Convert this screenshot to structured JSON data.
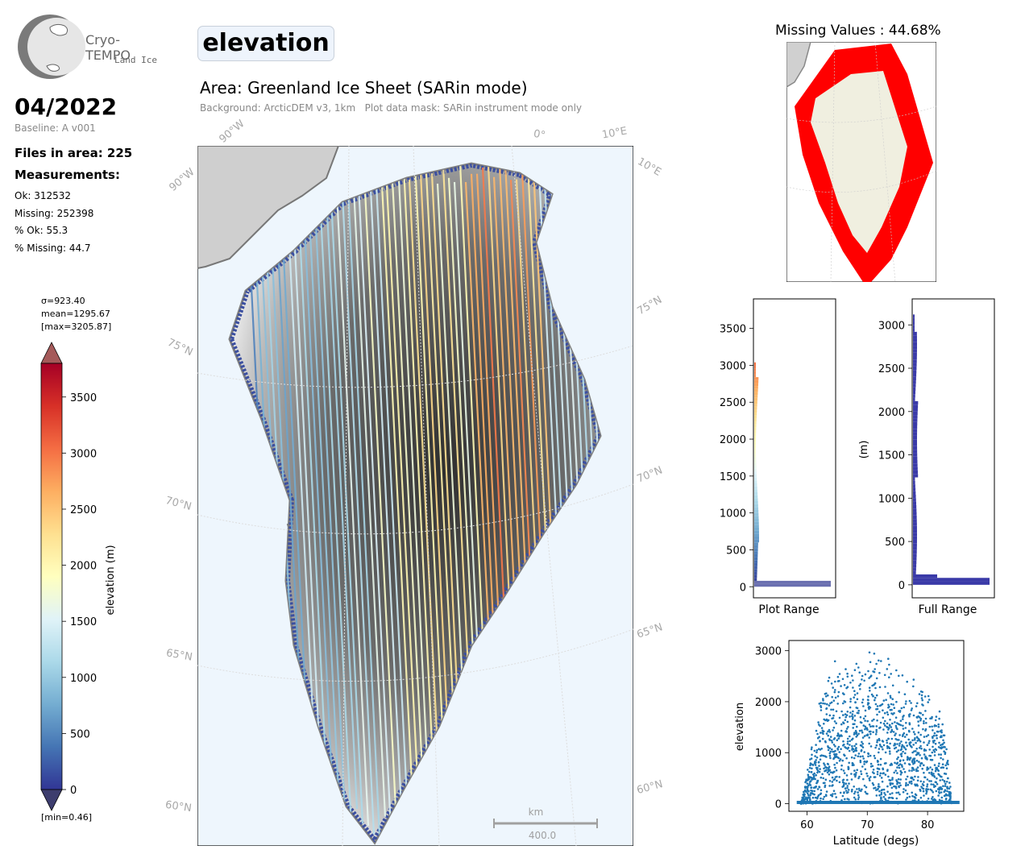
{
  "logo": {
    "name": "Cryo-TEMPO",
    "subtitle": "Land Ice"
  },
  "period": "04/2022",
  "baseline": "Baseline: A v001",
  "files": "Files in area: 225",
  "measurements": {
    "heading": "Measurements:",
    "ok": "Ok: 312532",
    "missing": "Missing: 252398",
    "pct_ok": "% Ok: 55.3",
    "pct_missing": "% Missing: 44.7"
  },
  "param_badge": "elevation",
  "area_title": "Area: Greenland Ice Sheet (SARin mode)",
  "area_subtitle": "Background: ArcticDEM v3, 1km   Plot data mask: SARin instrument mode only",
  "map_labels": {
    "top_90w": "90°W",
    "top_0": "0°",
    "top_10e": "10°E",
    "left_90w": "90°W",
    "right_10e": "10°E",
    "left_75n": "75°N",
    "left_70n": "70°N",
    "left_65n": "65°N",
    "left_60n": "60°N",
    "right_75n": "75°N",
    "right_70n": "70°N",
    "right_65n": "65°N",
    "right_60n": "60°N",
    "scale_unit": "km",
    "scale_value": "400.0"
  },
  "colorbar": {
    "stats": [
      "σ=923.40",
      "mean=1295.67",
      "[max=3205.87]"
    ],
    "min_label": "[min=0.46]",
    "label": "elevation (m)",
    "ticks": [
      "0",
      "500",
      "1000",
      "1500",
      "2000",
      "2500",
      "3000",
      "3500"
    ],
    "colors": [
      "#313695",
      "#4575b4",
      "#74add1",
      "#abd9e9",
      "#e0f3f8",
      "#ffffbf",
      "#fee090",
      "#fdae61",
      "#f46d43",
      "#d73027",
      "#a50026"
    ]
  },
  "missing_map": {
    "title": "Missing Values : 44.68%",
    "missing_color": "#ff0000",
    "land_color": "#f0efe0"
  },
  "chart_data": [
    {
      "type": "histogram",
      "name": "plot-range-histogram",
      "xlabel": "Plot Range",
      "ylabel": "",
      "ylim": [
        -150,
        3900
      ],
      "yticks": [
        0,
        500,
        1000,
        1500,
        2000,
        2500,
        3000,
        3500
      ],
      "colored_by_value": true
    },
    {
      "type": "histogram",
      "name": "full-range-histogram",
      "xlabel": "Full Range",
      "ylabel": "(m)",
      "ylim": [
        -150,
        3300
      ],
      "yticks": [
        0,
        500,
        1000,
        1500,
        2000,
        2500,
        3000
      ],
      "color": "#3a3aa8"
    },
    {
      "type": "scatter",
      "name": "elevation-vs-latitude",
      "xlabel": "Latitude (degs)",
      "ylabel": "elevation",
      "xlim": [
        57,
        86
      ],
      "ylim": [
        -150,
        3200
      ],
      "xticks": [
        60,
        70,
        80
      ],
      "yticks": [
        0,
        1000,
        2000,
        3000
      ],
      "color": "#1f77b4",
      "upper_envelope": [
        [
          59,
          0
        ],
        [
          60,
          600
        ],
        [
          61,
          1500
        ],
        [
          62,
          2200
        ],
        [
          63,
          2800
        ],
        [
          64,
          2950
        ],
        [
          65,
          2900
        ],
        [
          66,
          2750
        ],
        [
          67,
          3000
        ],
        [
          68,
          2850
        ],
        [
          69,
          2950
        ],
        [
          70,
          3150
        ],
        [
          71,
          3100
        ],
        [
          72,
          3050
        ],
        [
          73,
          3000
        ],
        [
          74,
          3000
        ],
        [
          75,
          2900
        ],
        [
          76,
          2700
        ],
        [
          77,
          2600
        ],
        [
          78,
          2400
        ],
        [
          79,
          2650
        ],
        [
          80,
          2500
        ],
        [
          81,
          2150
        ],
        [
          82,
          1900
        ],
        [
          83,
          1550
        ],
        [
          84,
          0
        ]
      ]
    }
  ]
}
